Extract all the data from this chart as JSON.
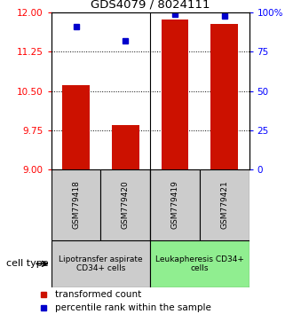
{
  "title": "GDS4079 / 8024111",
  "samples": [
    "GSM779418",
    "GSM779420",
    "GSM779419",
    "GSM779421"
  ],
  "red_values": [
    10.62,
    9.85,
    11.87,
    11.78
  ],
  "blue_values": [
    91,
    82,
    99,
    98
  ],
  "ylim_left": [
    9,
    12
  ],
  "ylim_right": [
    0,
    100
  ],
  "yticks_left": [
    9,
    9.75,
    10.5,
    11.25,
    12
  ],
  "yticks_right": [
    0,
    25,
    50,
    75,
    100
  ],
  "ytick_labels_right": [
    "0",
    "25",
    "50",
    "75",
    "100%"
  ],
  "groups": [
    {
      "label": "Lipotransfer aspirate\nCD34+ cells",
      "samples": [
        0,
        1
      ],
      "color": "#cccccc"
    },
    {
      "label": "Leukapheresis CD34+\ncells",
      "samples": [
        2,
        3
      ],
      "color": "#90ee90"
    }
  ],
  "bar_color": "#cc1100",
  "dot_color": "#0000cc",
  "bar_width": 0.55,
  "background_color": "#ffffff",
  "legend_red": "transformed count",
  "legend_blue": "percentile rank within the sample",
  "cell_type_label": "cell type"
}
